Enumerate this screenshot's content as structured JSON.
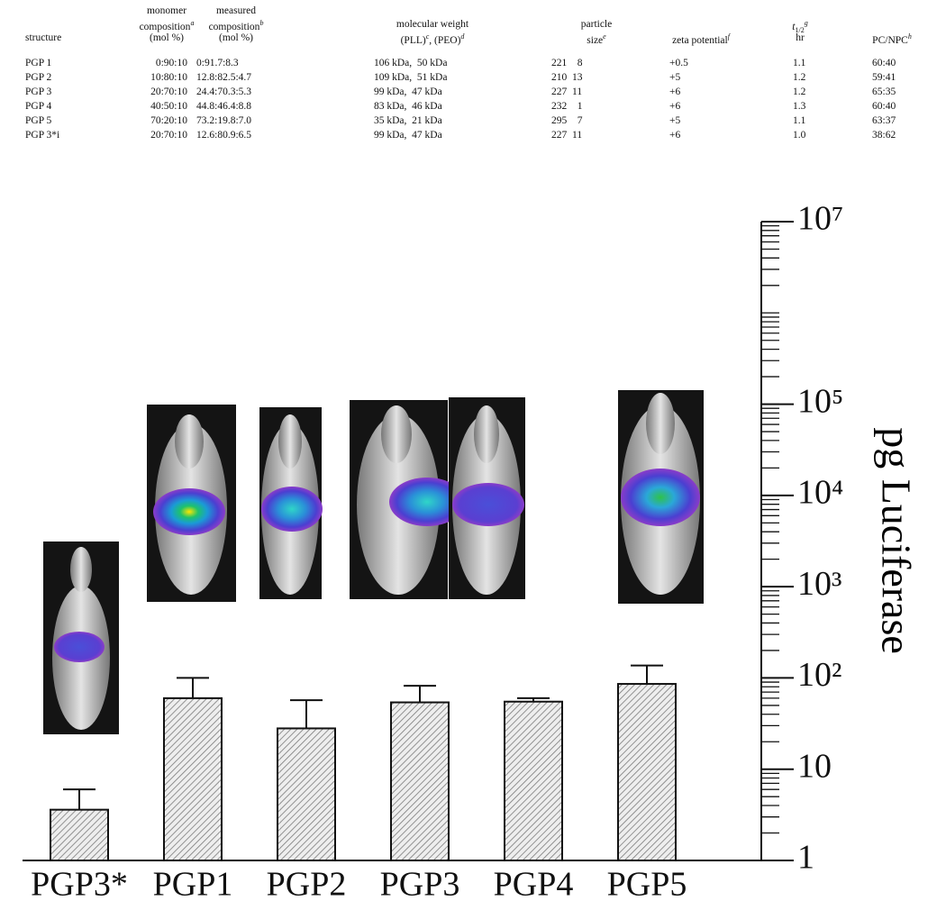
{
  "table": {
    "headers": [
      {
        "lines": [
          [
            {
              "text": "structure"
            }
          ]
        ]
      },
      {
        "lines": [
          [
            {
              "text": "monomer"
            }
          ],
          [
            {
              "text": "composition",
              "sup": "a"
            }
          ],
          [
            {
              "text": "(mol %)"
            }
          ]
        ]
      },
      {
        "lines": [
          [
            {
              "text": "measured"
            }
          ],
          [
            {
              "text": "composition",
              "sup": "b"
            }
          ],
          [
            {
              "text": "(mol %)"
            }
          ]
        ]
      },
      {
        "lines": [
          [
            {
              "text": "molecular weight"
            }
          ],
          [
            {
              "text": "(PLL)",
              "sup": "c"
            },
            {
              "text": ", (PEO)",
              "sup": "d"
            }
          ]
        ]
      },
      {
        "lines": [
          [
            {
              "text": "particle"
            }
          ],
          [
            {
              "text": "size",
              "sup": "e"
            }
          ]
        ]
      },
      {
        "lines": [
          [
            {
              "text": "zeta potential",
              "sup": "f"
            }
          ]
        ]
      },
      {
        "lines": [
          [
            {
              "text": "t",
              "sub": "1/2",
              "sup": "g"
            }
          ],
          [
            {
              "text": "hr"
            }
          ]
        ]
      },
      {
        "lines": [
          [
            {
              "text": "PC/NPC",
              "sup": "h"
            }
          ]
        ]
      }
    ],
    "rows": [
      [
        "PGP 1",
        "0:90:10",
        "0:91.7:8.3",
        "106 kDa,  50 kDa",
        "221    8",
        "+0.5",
        "1.1",
        "60:40"
      ],
      [
        "PGP 2",
        "10:80:10",
        "12.8:82.5:4.7",
        "109 kDa,  51 kDa",
        "210  13",
        "+5",
        "1.2",
        "59:41"
      ],
      [
        "PGP 3",
        "20:70:10",
        "24.4:70.3:5.3",
        "99 kDa,  47 kDa",
        "227  11",
        "+6",
        "1.2",
        "65:35"
      ],
      [
        "PGP 4",
        "40:50:10",
        "44.8:46.4:8.8",
        "83 kDa,  46 kDa",
        "232    1",
        "+6",
        "1.3",
        "60:40"
      ],
      [
        "PGP 5",
        "70:20:10",
        "73.2:19.8:7.0",
        "35 kDa,  21 kDa",
        "295    7",
        "+5",
        "1.1",
        "63:37"
      ],
      [
        "PGP 3*i",
        "20:70:10",
        "12.6:80.9:6.5",
        "99 kDa,  47 kDa",
        "227  11",
        "+6",
        "1.0",
        "38:62"
      ]
    ]
  },
  "chart_data": {
    "type": "bar",
    "categories": [
      "PGP3*",
      "PGP1",
      "PGP2",
      "PGP3",
      "PGP4",
      "PGP5"
    ],
    "values": [
      3.6,
      60,
      28,
      54,
      55,
      86
    ],
    "errors": [
      2.4,
      40,
      29,
      28,
      5,
      51
    ],
    "color": "#7a7a7a",
    "log_scale": true,
    "ylabel": "pg Luciferase",
    "ylim": [
      1,
      10000000
    ],
    "yticks": [
      1,
      10,
      {
        "value": 100,
        "label": "10²"
      },
      {
        "value": 1000,
        "label": "10³"
      },
      {
        "value": 10000,
        "label": "10⁴"
      },
      {
        "value": 100000,
        "label": "10⁵"
      },
      {
        "value": 10000000,
        "label": "10⁷"
      }
    ]
  }
}
